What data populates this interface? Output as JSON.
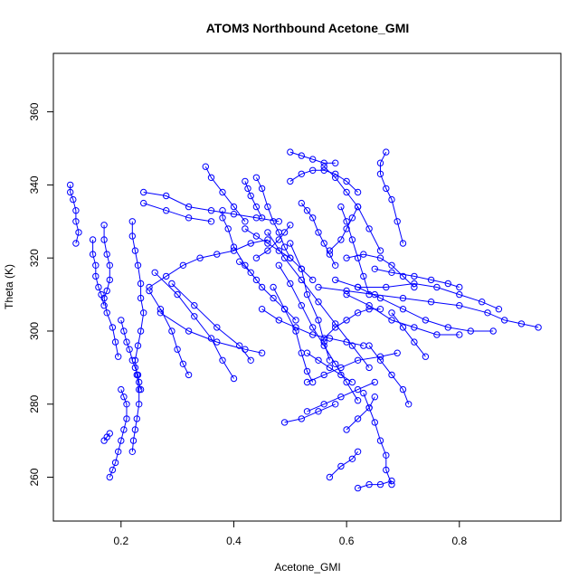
{
  "chart_data": {
    "type": "scatter",
    "title": "ATOM3 Northbound Acetone_GMI",
    "xlabel": "Acetone_GMI",
    "ylabel": "Theta (K)",
    "xlim": [
      0.08,
      0.98
    ],
    "ylim": [
      248,
      376
    ],
    "x_ticks": [
      0.2,
      0.4,
      0.6,
      0.8
    ],
    "y_ticks": [
      260,
      280,
      300,
      320,
      340,
      360
    ],
    "grid": false,
    "legend": "none",
    "color": "#0000ff",
    "marker": "open-circle",
    "connected": true,
    "segments": [
      [
        [
          0.11,
          340
        ],
        [
          0.11,
          338
        ],
        [
          0.115,
          336
        ],
        [
          0.12,
          333
        ],
        [
          0.12,
          330
        ],
        [
          0.125,
          327
        ],
        [
          0.12,
          324
        ]
      ],
      [
        [
          0.15,
          325
        ],
        [
          0.15,
          321
        ],
        [
          0.155,
          318
        ],
        [
          0.155,
          315
        ],
        [
          0.16,
          312
        ],
        [
          0.165,
          310
        ],
        [
          0.17,
          307
        ]
      ],
      [
        [
          0.17,
          329
        ],
        [
          0.17,
          325
        ],
        [
          0.175,
          321
        ],
        [
          0.18,
          318
        ],
        [
          0.18,
          314
        ],
        [
          0.175,
          311
        ],
        [
          0.17,
          309
        ],
        [
          0.175,
          305
        ],
        [
          0.185,
          301
        ],
        [
          0.19,
          297
        ],
        [
          0.195,
          293
        ]
      ],
      [
        [
          0.2,
          303
        ],
        [
          0.205,
          300
        ],
        [
          0.21,
          297
        ],
        [
          0.215,
          295
        ],
        [
          0.22,
          292
        ],
        [
          0.225,
          290
        ],
        [
          0.23,
          288
        ],
        [
          0.232,
          286
        ],
        [
          0.235,
          284
        ]
      ],
      [
        [
          0.22,
          330
        ],
        [
          0.22,
          326
        ],
        [
          0.225,
          322
        ],
        [
          0.23,
          318
        ],
        [
          0.235,
          313
        ],
        [
          0.235,
          309
        ],
        [
          0.24,
          305
        ],
        [
          0.235,
          300
        ],
        [
          0.23,
          296
        ],
        [
          0.225,
          292
        ],
        [
          0.228,
          288
        ],
        [
          0.232,
          284
        ],
        [
          0.232,
          280
        ],
        [
          0.228,
          276
        ],
        [
          0.225,
          273
        ],
        [
          0.222,
          270
        ],
        [
          0.22,
          267
        ]
      ],
      [
        [
          0.2,
          284
        ],
        [
          0.205,
          282
        ],
        [
          0.21,
          280
        ],
        [
          0.21,
          276
        ],
        [
          0.205,
          273
        ],
        [
          0.2,
          270
        ],
        [
          0.195,
          267
        ],
        [
          0.19,
          264
        ],
        [
          0.185,
          262
        ],
        [
          0.18,
          260
        ]
      ],
      [
        [
          0.17,
          270
        ],
        [
          0.175,
          271
        ],
        [
          0.18,
          272
        ]
      ],
      [
        [
          0.24,
          338
        ],
        [
          0.28,
          337
        ],
        [
          0.32,
          334
        ],
        [
          0.36,
          333
        ],
        [
          0.4,
          332
        ],
        [
          0.44,
          331
        ],
        [
          0.48,
          330
        ]
      ],
      [
        [
          0.24,
          335
        ],
        [
          0.28,
          333
        ],
        [
          0.32,
          331
        ],
        [
          0.36,
          330
        ]
      ],
      [
        [
          0.25,
          312
        ],
        [
          0.28,
          315
        ],
        [
          0.31,
          318
        ],
        [
          0.34,
          320
        ],
        [
          0.37,
          321
        ],
        [
          0.4,
          322
        ],
        [
          0.43,
          324
        ],
        [
          0.46,
          325
        ]
      ],
      [
        [
          0.25,
          311
        ],
        [
          0.27,
          306
        ],
        [
          0.29,
          300
        ],
        [
          0.3,
          295
        ],
        [
          0.31,
          291
        ],
        [
          0.32,
          288
        ]
      ],
      [
        [
          0.26,
          316
        ],
        [
          0.3,
          310
        ],
        [
          0.33,
          304
        ],
        [
          0.36,
          298
        ],
        [
          0.38,
          292
        ],
        [
          0.4,
          287
        ]
      ],
      [
        [
          0.27,
          305
        ],
        [
          0.32,
          300
        ],
        [
          0.37,
          297
        ],
        [
          0.42,
          295
        ],
        [
          0.45,
          294
        ]
      ],
      [
        [
          0.29,
          313
        ],
        [
          0.33,
          307
        ],
        [
          0.37,
          301
        ],
        [
          0.41,
          296
        ],
        [
          0.43,
          292
        ]
      ],
      [
        [
          0.35,
          345
        ],
        [
          0.36,
          342
        ],
        [
          0.38,
          338
        ],
        [
          0.4,
          334
        ],
        [
          0.42,
          330
        ]
      ],
      [
        [
          0.38,
          333
        ],
        [
          0.38,
          331
        ],
        [
          0.39,
          328
        ],
        [
          0.4,
          323
        ],
        [
          0.42,
          318
        ],
        [
          0.44,
          314
        ]
      ],
      [
        [
          0.42,
          341
        ],
        [
          0.425,
          339
        ],
        [
          0.43,
          337
        ],
        [
          0.44,
          334
        ],
        [
          0.45,
          331
        ]
      ],
      [
        [
          0.44,
          342
        ],
        [
          0.45,
          339
        ],
        [
          0.46,
          334
        ],
        [
          0.47,
          330
        ],
        [
          0.48,
          327
        ],
        [
          0.49,
          323
        ],
        [
          0.5,
          320
        ]
      ],
      [
        [
          0.44,
          320
        ],
        [
          0.46,
          322
        ],
        [
          0.48,
          325
        ],
        [
          0.49,
          327
        ],
        [
          0.5,
          329
        ]
      ],
      [
        [
          0.5,
          349
        ],
        [
          0.52,
          348
        ],
        [
          0.54,
          347
        ],
        [
          0.56,
          346
        ],
        [
          0.58,
          346
        ]
      ],
      [
        [
          0.5,
          341
        ],
        [
          0.52,
          343
        ],
        [
          0.54,
          344
        ],
        [
          0.56,
          344
        ],
        [
          0.58,
          343
        ],
        [
          0.6,
          341
        ],
        [
          0.62,
          338
        ]
      ],
      [
        [
          0.52,
          335
        ],
        [
          0.53,
          333
        ],
        [
          0.54,
          331
        ],
        [
          0.55,
          327
        ],
        [
          0.56,
          324
        ],
        [
          0.57,
          321
        ],
        [
          0.58,
          318
        ]
      ],
      [
        [
          0.56,
          345
        ],
        [
          0.58,
          342
        ],
        [
          0.6,
          338
        ],
        [
          0.62,
          334
        ],
        [
          0.64,
          328
        ],
        [
          0.66,
          322
        ]
      ],
      [
        [
          0.67,
          349
        ],
        [
          0.66,
          346
        ],
        [
          0.66,
          343
        ],
        [
          0.67,
          339
        ],
        [
          0.68,
          336
        ],
        [
          0.69,
          330
        ],
        [
          0.7,
          324
        ]
      ],
      [
        [
          0.46,
          327
        ],
        [
          0.49,
          320
        ],
        [
          0.52,
          314
        ],
        [
          0.55,
          308
        ],
        [
          0.58,
          302
        ],
        [
          0.61,
          296
        ],
        [
          0.64,
          290
        ]
      ],
      [
        [
          0.48,
          318
        ],
        [
          0.5,
          313
        ],
        [
          0.52,
          307
        ],
        [
          0.54,
          301
        ],
        [
          0.56,
          296
        ],
        [
          0.58,
          291
        ],
        [
          0.6,
          286
        ],
        [
          0.62,
          281
        ]
      ],
      [
        [
          0.5,
          324
        ],
        [
          0.52,
          317
        ],
        [
          0.53,
          310
        ],
        [
          0.55,
          303
        ],
        [
          0.56,
          297
        ],
        [
          0.57,
          292
        ]
      ],
      [
        [
          0.53,
          286
        ],
        [
          0.56,
          288
        ],
        [
          0.59,
          290
        ],
        [
          0.62,
          292
        ],
        [
          0.66,
          293
        ],
        [
          0.69,
          294
        ]
      ],
      [
        [
          0.53,
          278
        ],
        [
          0.56,
          280
        ],
        [
          0.59,
          282
        ],
        [
          0.62,
          284
        ],
        [
          0.65,
          286
        ]
      ],
      [
        [
          0.49,
          275
        ],
        [
          0.52,
          276
        ],
        [
          0.55,
          278
        ],
        [
          0.58,
          280
        ]
      ],
      [
        [
          0.57,
          260
        ],
        [
          0.59,
          263
        ],
        [
          0.61,
          265
        ],
        [
          0.62,
          267
        ]
      ],
      [
        [
          0.62,
          257
        ],
        [
          0.64,
          258
        ],
        [
          0.66,
          258
        ],
        [
          0.68,
          259
        ]
      ],
      [
        [
          0.63,
          283
        ],
        [
          0.64,
          279
        ],
        [
          0.65,
          275
        ],
        [
          0.66,
          270
        ],
        [
          0.67,
          266
        ],
        [
          0.67,
          262
        ],
        [
          0.68,
          258
        ]
      ],
      [
        [
          0.64,
          296
        ],
        [
          0.66,
          292
        ],
        [
          0.68,
          288
        ],
        [
          0.7,
          284
        ],
        [
          0.71,
          280
        ]
      ],
      [
        [
          0.68,
          305
        ],
        [
          0.7,
          301
        ],
        [
          0.72,
          297
        ],
        [
          0.74,
          293
        ]
      ],
      [
        [
          0.55,
          312
        ],
        [
          0.6,
          311
        ],
        [
          0.65,
          310
        ],
        [
          0.7,
          309
        ],
        [
          0.75,
          308
        ],
        [
          0.8,
          307
        ],
        [
          0.85,
          305
        ],
        [
          0.88,
          303
        ],
        [
          0.91,
          302
        ],
        [
          0.94,
          301
        ]
      ],
      [
        [
          0.58,
          314
        ],
        [
          0.62,
          312
        ],
        [
          0.66,
          309
        ],
        [
          0.7,
          306
        ],
        [
          0.74,
          303
        ],
        [
          0.78,
          301
        ],
        [
          0.82,
          300
        ],
        [
          0.86,
          300
        ]
      ],
      [
        [
          0.6,
          310
        ],
        [
          0.64,
          307
        ],
        [
          0.68,
          303
        ],
        [
          0.72,
          301
        ],
        [
          0.76,
          299
        ],
        [
          0.8,
          299
        ]
      ],
      [
        [
          0.62,
          312
        ],
        [
          0.67,
          312
        ],
        [
          0.72,
          313
        ],
        [
          0.76,
          312
        ],
        [
          0.8,
          310
        ],
        [
          0.84,
          308
        ],
        [
          0.87,
          306
        ]
      ],
      [
        [
          0.65,
          317
        ],
        [
          0.68,
          316
        ],
        [
          0.72,
          315
        ],
        [
          0.75,
          314
        ],
        [
          0.78,
          313
        ],
        [
          0.8,
          312
        ]
      ],
      [
        [
          0.6,
          320
        ],
        [
          0.63,
          321
        ],
        [
          0.66,
          320
        ],
        [
          0.68,
          318
        ],
        [
          0.7,
          315
        ],
        [
          0.72,
          312
        ]
      ],
      [
        [
          0.45,
          306
        ],
        [
          0.48,
          303
        ],
        [
          0.51,
          301
        ],
        [
          0.54,
          299
        ],
        [
          0.57,
          298
        ],
        [
          0.6,
          297
        ],
        [
          0.63,
          296
        ]
      ],
      [
        [
          0.47,
          312
        ],
        [
          0.49,
          306
        ],
        [
          0.51,
          300
        ],
        [
          0.52,
          294
        ],
        [
          0.53,
          289
        ],
        [
          0.54,
          286
        ]
      ],
      [
        [
          0.56,
          298
        ],
        [
          0.58,
          301
        ],
        [
          0.6,
          303
        ],
        [
          0.62,
          305
        ],
        [
          0.64,
          306
        ],
        [
          0.66,
          306
        ]
      ],
      [
        [
          0.57,
          322
        ],
        [
          0.59,
          325
        ],
        [
          0.6,
          328
        ],
        [
          0.61,
          331
        ],
        [
          0.62,
          334
        ]
      ],
      [
        [
          0.59,
          334
        ],
        [
          0.6,
          330
        ],
        [
          0.61,
          325
        ],
        [
          0.62,
          320
        ],
        [
          0.63,
          315
        ],
        [
          0.64,
          310
        ]
      ],
      [
        [
          0.42,
          328
        ],
        [
          0.44,
          326
        ],
        [
          0.46,
          324
        ],
        [
          0.48,
          322
        ],
        [
          0.5,
          320
        ],
        [
          0.52,
          317
        ],
        [
          0.54,
          314
        ]
      ],
      [
        [
          0.41,
          319
        ],
        [
          0.43,
          316
        ],
        [
          0.45,
          312
        ],
        [
          0.47,
          309
        ],
        [
          0.49,
          306
        ],
        [
          0.51,
          303
        ]
      ],
      [
        [
          0.53,
          294
        ],
        [
          0.55,
          292
        ],
        [
          0.57,
          290
        ],
        [
          0.59,
          288
        ],
        [
          0.61,
          286
        ]
      ],
      [
        [
          0.6,
          273
        ],
        [
          0.62,
          276
        ],
        [
          0.64,
          279
        ],
        [
          0.65,
          282
        ]
      ]
    ]
  }
}
